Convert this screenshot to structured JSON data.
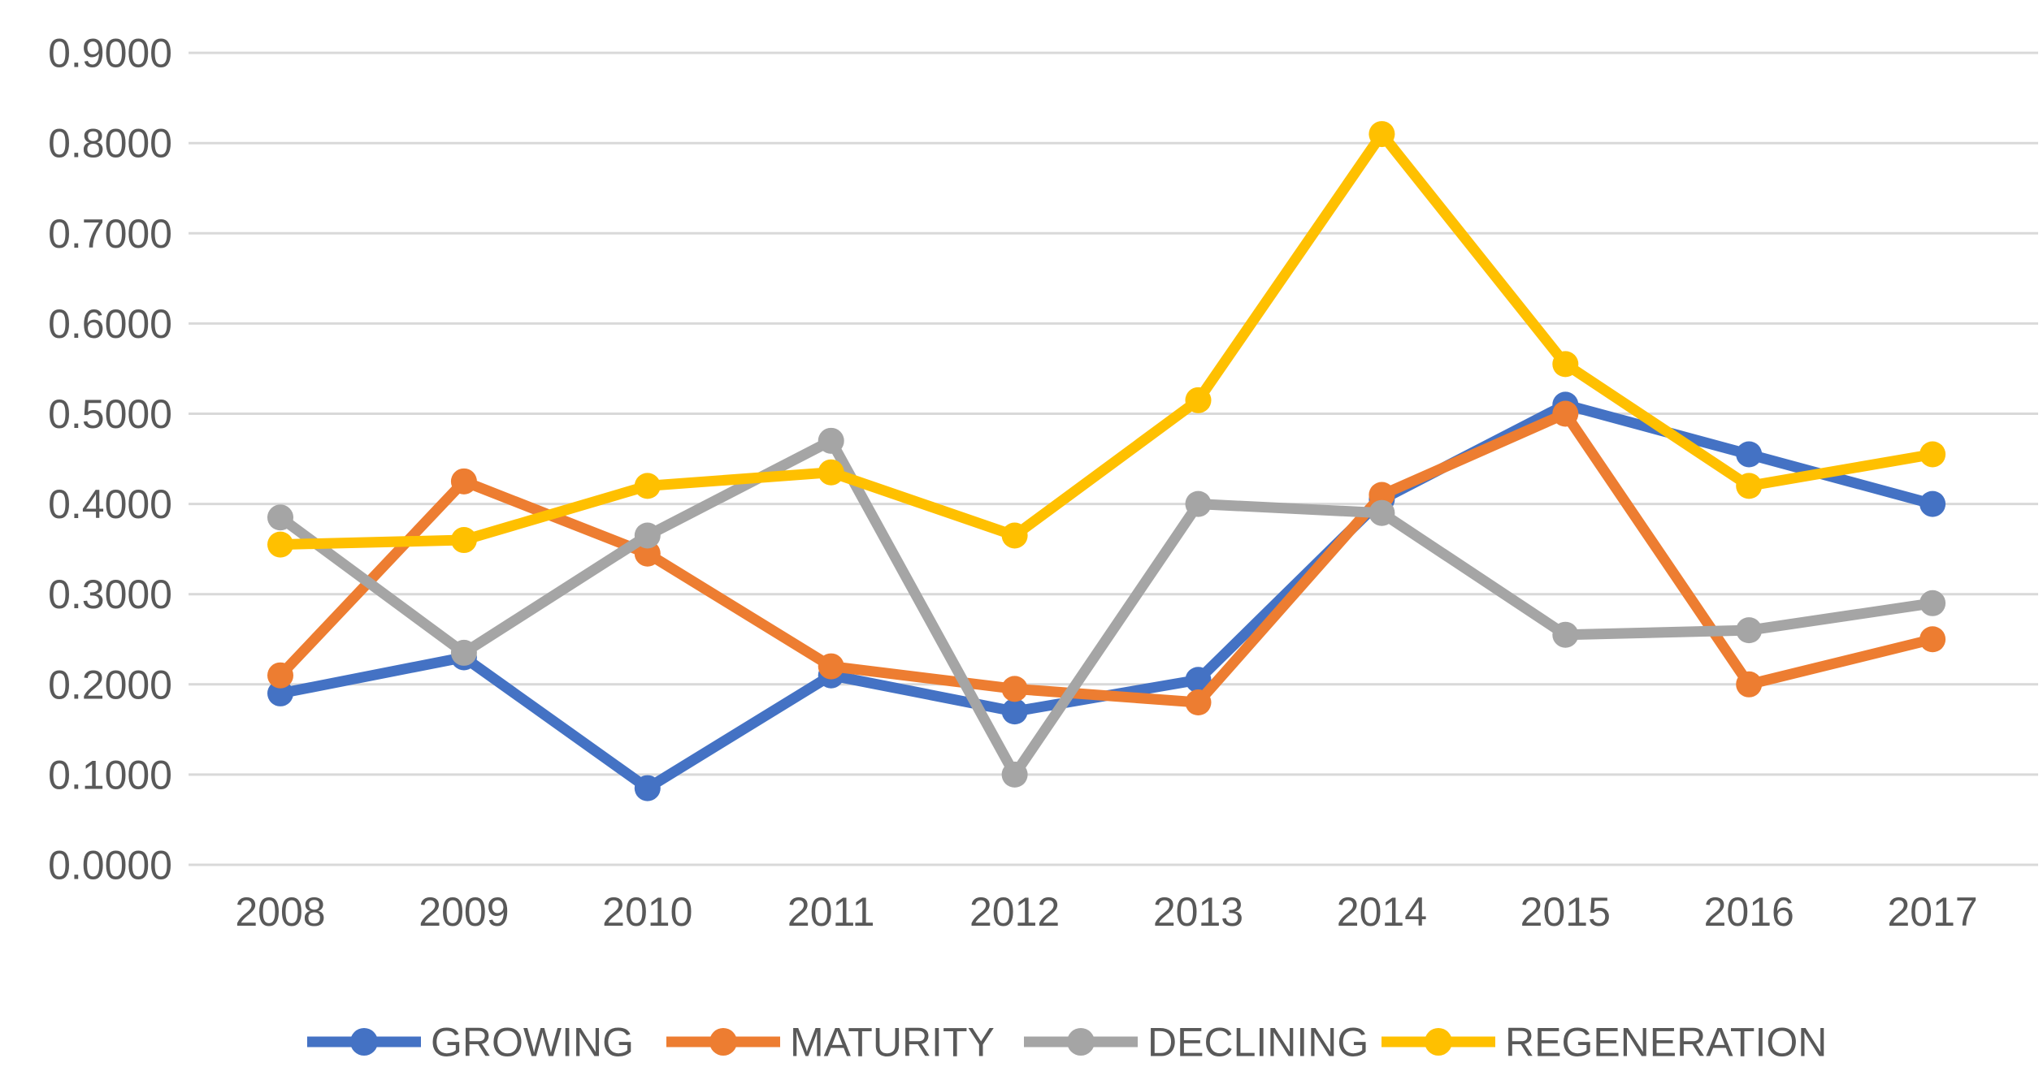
{
  "chart_data": {
    "type": "line",
    "title": "",
    "xlabel": "",
    "ylabel": "",
    "x": [
      "2008",
      "2009",
      "2010",
      "2011",
      "2012",
      "2013",
      "2014",
      "2015",
      "2016",
      "2017"
    ],
    "series": [
      {
        "name": "GROWING",
        "color": "#4472C4",
        "values": [
          0.19,
          0.23,
          0.085,
          0.21,
          0.17,
          0.205,
          0.405,
          0.51,
          0.455,
          0.4
        ]
      },
      {
        "name": "MATURITY",
        "color": "#ED7D31",
        "values": [
          0.21,
          0.425,
          0.345,
          0.22,
          0.195,
          0.18,
          0.41,
          0.5,
          0.2,
          0.25
        ]
      },
      {
        "name": "DECLINING",
        "color": "#A5A5A5",
        "values": [
          0.385,
          0.235,
          0.365,
          0.47,
          0.1,
          0.4,
          0.39,
          0.255,
          0.26,
          0.29
        ]
      },
      {
        "name": "REGENERATION",
        "color": "#FFC000",
        "values": [
          0.355,
          0.36,
          0.42,
          0.435,
          0.365,
          0.515,
          0.81,
          0.555,
          0.42,
          0.455
        ]
      }
    ],
    "ylim": [
      0.0,
      0.9
    ],
    "ytick_step": 0.1,
    "ytick_decimals": 4,
    "ytick_labels": [
      "0.0000",
      "0.1000",
      "0.2000",
      "0.3000",
      "0.4000",
      "0.5000",
      "0.6000",
      "0.7000",
      "0.8000",
      "0.9000"
    ],
    "grid": "horizontal",
    "grid_color": "#D9D9D9",
    "tick_label_color": "#595959",
    "legend_position": "bottom",
    "legend_text_color": "#595959",
    "marker": "circle",
    "background": "#FFFFFF"
  }
}
